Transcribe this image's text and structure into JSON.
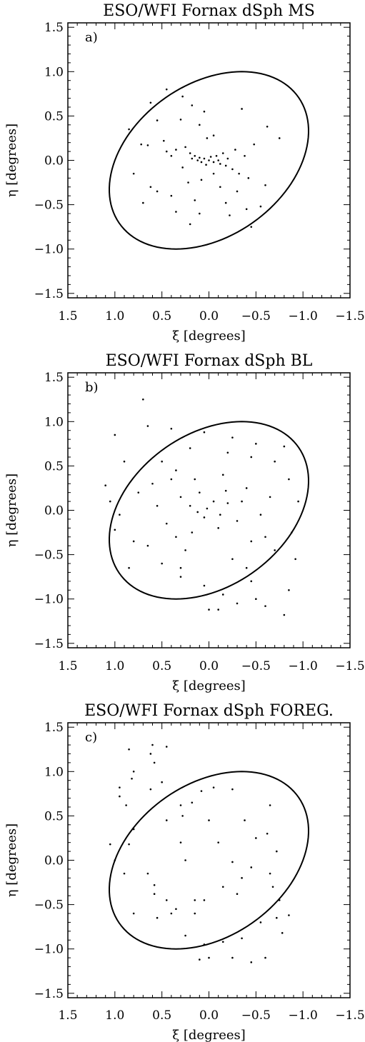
{
  "chart_data": [
    {
      "type": "scatter",
      "title": "ESO/WFI Fornax dSph   MS",
      "panel_label": "a)",
      "xlabel": "ξ [degrees]",
      "ylabel": "η [degrees]",
      "xlim": [
        1.5,
        -1.5
      ],
      "ylim": [
        -1.55,
        1.55
      ],
      "xticks": [
        "1.5",
        "1.0",
        "0.5",
        "0.0",
        "−0.5",
        "−1.0",
        "−1.5"
      ],
      "yticks": [
        "1.5",
        "1.0",
        "0.5",
        "0.0",
        "−0.5",
        "−1.0",
        "−1.5"
      ],
      "ellipse": {
        "center": [
          0.0,
          0.0
        ],
        "points": [
          [
            -0.35,
            1.0
          ],
          [
            1.0,
            0.0
          ],
          [
            0.35,
            -1.0
          ],
          [
            -1.0,
            0.0
          ]
        ]
      },
      "points": [
        [
          0.45,
          0.8
        ],
        [
          0.28,
          0.72
        ],
        [
          0.62,
          0.65
        ],
        [
          0.18,
          0.62
        ],
        [
          -0.35,
          0.58
        ],
        [
          0.05,
          0.55
        ],
        [
          0.3,
          0.46
        ],
        [
          0.1,
          0.4
        ],
        [
          0.55,
          0.45
        ],
        [
          -0.62,
          0.38
        ],
        [
          0.72,
          0.18
        ],
        [
          0.65,
          0.17
        ],
        [
          0.45,
          0.1
        ],
        [
          0.4,
          0.05
        ],
        [
          0.35,
          0.12
        ],
        [
          0.25,
          0.15
        ],
        [
          0.2,
          0.08
        ],
        [
          0.18,
          0.02
        ],
        [
          0.15,
          0.05
        ],
        [
          0.12,
          0.0
        ],
        [
          0.1,
          0.03
        ],
        [
          0.08,
          -0.02
        ],
        [
          0.05,
          0.02
        ],
        [
          0.03,
          -0.05
        ],
        [
          0.0,
          0.0
        ],
        [
          -0.02,
          0.04
        ],
        [
          -0.05,
          -0.02
        ],
        [
          -0.08,
          0.05
        ],
        [
          -0.1,
          0.0
        ],
        [
          -0.12,
          -0.04
        ],
        [
          -0.15,
          0.08
        ],
        [
          -0.18,
          -0.06
        ],
        [
          -0.2,
          0.02
        ],
        [
          -0.25,
          -0.1
        ],
        [
          -0.28,
          0.12
        ],
        [
          -0.32,
          -0.15
        ],
        [
          -0.38,
          0.05
        ],
        [
          -0.42,
          -0.2
        ],
        [
          0.02,
          0.25
        ],
        [
          -0.05,
          0.28
        ],
        [
          0.08,
          -0.22
        ],
        [
          -0.12,
          -0.3
        ],
        [
          0.22,
          -0.25
        ],
        [
          -0.3,
          -0.35
        ],
        [
          0.4,
          -0.4
        ],
        [
          0.55,
          -0.35
        ],
        [
          0.15,
          -0.45
        ],
        [
          -0.18,
          -0.48
        ],
        [
          0.7,
          -0.48
        ],
        [
          -0.4,
          -0.55
        ],
        [
          0.35,
          -0.58
        ],
        [
          -0.55,
          -0.52
        ],
        [
          0.1,
          -0.6
        ],
        [
          -0.22,
          -0.62
        ],
        [
          0.2,
          -0.72
        ],
        [
          -0.45,
          -0.75
        ],
        [
          0.62,
          -0.3
        ],
        [
          -0.6,
          -0.28
        ],
        [
          0.8,
          -0.15
        ],
        [
          -0.75,
          0.25
        ],
        [
          0.85,
          0.35
        ],
        [
          0.48,
          0.22
        ],
        [
          -0.48,
          0.18
        ],
        [
          0.28,
          -0.08
        ],
        [
          -0.05,
          -0.15
        ]
      ]
    },
    {
      "type": "scatter",
      "title": "ESO/WFI Fornax dSph   BL",
      "panel_label": "b)",
      "xlabel": "ξ [degrees]",
      "ylabel": "η [degrees]",
      "xlim": [
        1.5,
        -1.5
      ],
      "ylim": [
        -1.55,
        1.55
      ],
      "xticks": [
        "1.5",
        "1.0",
        "0.5",
        "0.0",
        "−0.5",
        "−1.0",
        "−1.5"
      ],
      "yticks": [
        "1.5",
        "1.0",
        "0.5",
        "0.0",
        "−0.5",
        "−1.0",
        "−1.5"
      ],
      "ellipse": {
        "center": [
          0.0,
          0.0
        ],
        "points": [
          [
            -0.35,
            1.0
          ],
          [
            1.0,
            0.0
          ],
          [
            0.35,
            -1.0
          ],
          [
            -1.0,
            0.0
          ]
        ]
      },
      "points": [
        [
          0.7,
          1.25
        ],
        [
          0.65,
          0.95
        ],
        [
          0.4,
          0.92
        ],
        [
          0.05,
          0.88
        ],
        [
          -0.25,
          0.82
        ],
        [
          -0.5,
          0.75
        ],
        [
          -0.8,
          0.72
        ],
        [
          1.0,
          0.85
        ],
        [
          0.9,
          0.55
        ],
        [
          1.1,
          0.28
        ],
        [
          1.05,
          0.1
        ],
        [
          0.95,
          -0.05
        ],
        [
          1.0,
          -0.22
        ],
        [
          0.8,
          -0.35
        ],
        [
          0.85,
          -0.65
        ],
        [
          0.5,
          -0.6
        ],
        [
          0.3,
          -0.75
        ],
        [
          0.05,
          -0.85
        ],
        [
          -0.15,
          -0.95
        ],
        [
          -0.3,
          -1.05
        ],
        [
          -0.5,
          -1.0
        ],
        [
          -0.6,
          -1.08
        ],
        [
          -0.8,
          -1.18
        ],
        [
          -0.85,
          -0.9
        ],
        [
          -0.92,
          -0.55
        ],
        [
          -0.88,
          -0.25
        ],
        [
          -0.95,
          0.1
        ],
        [
          -0.85,
          0.35
        ],
        [
          -0.7,
          0.55
        ],
        [
          -0.45,
          0.6
        ],
        [
          0.2,
          0.7
        ],
        [
          0.35,
          0.45
        ],
        [
          -0.1,
          -1.12
        ],
        [
          0.0,
          -1.12
        ],
        [
          -0.45,
          -0.8
        ],
        [
          0.6,
          0.3
        ],
        [
          -0.6,
          -0.3
        ],
        [
          0.45,
          -0.15
        ],
        [
          -0.4,
          0.25
        ],
        [
          0.25,
          -0.45
        ],
        [
          -0.25,
          -0.55
        ],
        [
          0.15,
          0.35
        ],
        [
          -0.15,
          0.4
        ],
        [
          0.55,
          0.05
        ],
        [
          -0.55,
          -0.05
        ],
        [
          0.75,
          0.2
        ],
        [
          -0.7,
          -0.45
        ],
        [
          0.35,
          -0.3
        ],
        [
          -0.35,
          0.1
        ],
        [
          0.1,
          0.2
        ],
        [
          -0.1,
          -0.2
        ],
        [
          0.2,
          0.05
        ],
        [
          -0.2,
          0.08
        ],
        [
          0.05,
          -0.08
        ],
        [
          -0.05,
          0.1
        ],
        [
          0.12,
          -0.02
        ],
        [
          -0.12,
          -0.05
        ],
        [
          0.02,
          0.02
        ],
        [
          0.3,
          0.15
        ],
        [
          -0.3,
          -0.12
        ],
        [
          0.18,
          -0.25
        ],
        [
          -0.18,
          0.22
        ],
        [
          0.4,
          0.35
        ],
        [
          -0.45,
          -0.35
        ],
        [
          0.65,
          -0.4
        ],
        [
          -0.65,
          0.15
        ],
        [
          0.5,
          0.55
        ],
        [
          -0.2,
          0.65
        ],
        [
          0.3,
          -0.65
        ],
        [
          -0.4,
          -0.65
        ]
      ]
    },
    {
      "type": "scatter",
      "title": "ESO/WFI Fornax dSph   FOREG.",
      "panel_label": "c)",
      "xlabel": "ξ [degrees]",
      "ylabel": "η [degrees]",
      "xlim": [
        1.5,
        -1.5
      ],
      "ylim": [
        -1.55,
        1.55
      ],
      "xticks": [
        "1.5",
        "1.0",
        "0.5",
        "0.0",
        "−0.5",
        "−1.0",
        "−1.5"
      ],
      "yticks": [
        "1.5",
        "1.0",
        "0.5",
        "0.0",
        "−0.5",
        "−1.0",
        "−1.5"
      ],
      "ellipse": {
        "center": [
          0.0,
          0.0
        ],
        "points": [
          [
            -0.35,
            1.0
          ],
          [
            1.0,
            0.0
          ],
          [
            0.35,
            -1.0
          ],
          [
            -1.0,
            0.0
          ]
        ]
      },
      "points": [
        [
          0.85,
          1.25
        ],
        [
          0.6,
          1.3
        ],
        [
          0.45,
          1.28
        ],
        [
          0.62,
          1.2
        ],
        [
          0.58,
          1.1
        ],
        [
          0.8,
          1.0
        ],
        [
          0.82,
          0.92
        ],
        [
          0.62,
          0.8
        ],
        [
          0.5,
          0.88
        ],
        [
          0.95,
          0.82
        ],
        [
          0.95,
          0.72
        ],
        [
          0.88,
          0.62
        ],
        [
          0.3,
          0.62
        ],
        [
          0.18,
          0.65
        ],
        [
          0.08,
          0.78
        ],
        [
          -0.05,
          0.82
        ],
        [
          -0.25,
          0.8
        ],
        [
          0.45,
          0.45
        ],
        [
          0.28,
          0.5
        ],
        [
          0.0,
          0.45
        ],
        [
          -0.38,
          0.45
        ],
        [
          -0.65,
          0.62
        ],
        [
          0.8,
          0.35
        ],
        [
          0.85,
          0.18
        ],
        [
          1.05,
          0.18
        ],
        [
          1.0,
          0.0
        ],
        [
          0.9,
          -0.15
        ],
        [
          0.65,
          -0.15
        ],
        [
          0.58,
          -0.28
        ],
        [
          0.58,
          -0.38
        ],
        [
          0.45,
          -0.45
        ],
        [
          0.35,
          -0.55
        ],
        [
          0.4,
          -0.6
        ],
        [
          0.55,
          -0.65
        ],
        [
          0.8,
          -0.6
        ],
        [
          0.15,
          -0.45
        ],
        [
          0.15,
          -0.6
        ],
        [
          0.05,
          -0.45
        ],
        [
          -0.15,
          -0.3
        ],
        [
          -0.3,
          -0.38
        ],
        [
          -0.35,
          -0.2
        ],
        [
          -0.45,
          -0.08
        ],
        [
          -0.25,
          -0.02
        ],
        [
          0.25,
          0.0
        ],
        [
          0.3,
          0.2
        ],
        [
          -0.1,
          0.2
        ],
        [
          -0.5,
          0.25
        ],
        [
          -0.62,
          0.3
        ],
        [
          -0.72,
          0.1
        ],
        [
          -0.65,
          -0.15
        ],
        [
          -0.68,
          -0.3
        ],
        [
          -0.75,
          -0.45
        ],
        [
          -0.85,
          -0.62
        ],
        [
          -0.72,
          -0.65
        ],
        [
          -0.55,
          -0.7
        ],
        [
          -0.35,
          -0.88
        ],
        [
          -0.15,
          -0.92
        ],
        [
          0.05,
          -0.95
        ],
        [
          -0.25,
          -1.1
        ],
        [
          -0.45,
          -1.15
        ],
        [
          0.0,
          -1.1
        ],
        [
          0.1,
          -1.12
        ],
        [
          -0.6,
          -1.1
        ],
        [
          -0.78,
          -0.82
        ],
        [
          0.25,
          -0.85
        ]
      ]
    }
  ]
}
